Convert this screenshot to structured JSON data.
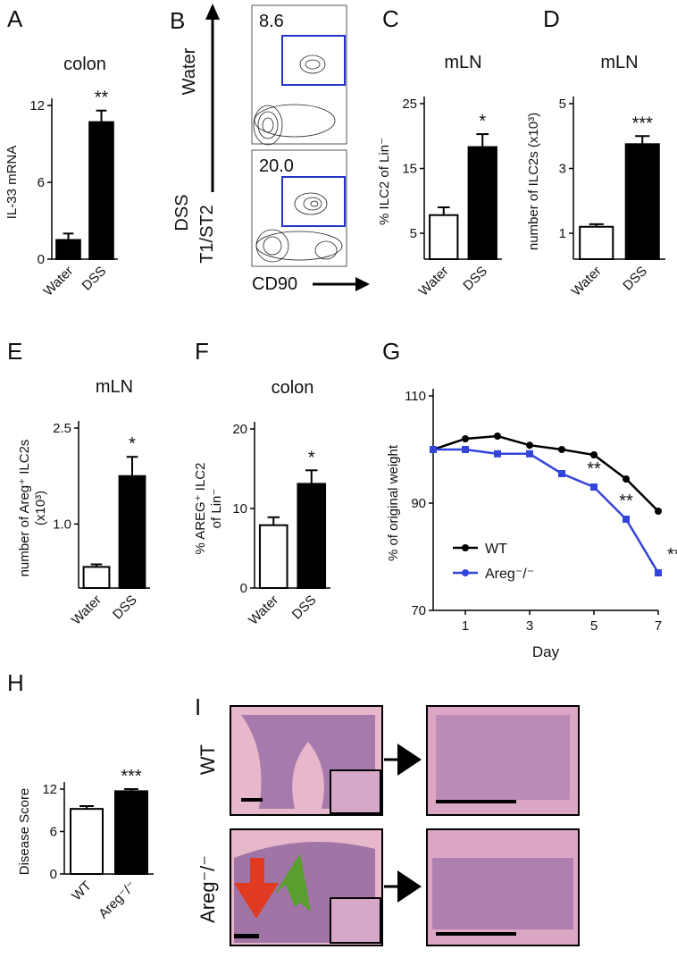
{
  "chart_data": [
    {
      "type": "bar",
      "panel": "A",
      "title": "colon",
      "ylabel": "IL-33 mRNA",
      "categories": [
        "Water",
        "DSS"
      ],
      "values": [
        1.5,
        10.7
      ],
      "errors": [
        0.5,
        0.9
      ],
      "colors": [
        "#000000",
        "#000000"
      ],
      "fills": [
        "#000000",
        "#000000"
      ],
      "ylim": [
        0,
        12
      ],
      "yticks": [
        0,
        6,
        12
      ],
      "annotation": "**"
    },
    {
      "type": "bar",
      "panel": "C",
      "title": "mLN",
      "ylabel": "% ILC2 of Lin⁻",
      "categories": [
        "Water",
        "DSS"
      ],
      "values": [
        7.8,
        18.3
      ],
      "errors": [
        1.2,
        2.0
      ],
      "fills": [
        "#ffffff",
        "#000000"
      ],
      "ylim": [
        1,
        25
      ],
      "yticks": [
        5,
        15,
        25
      ],
      "annotation": "*"
    },
    {
      "type": "bar",
      "panel": "D",
      "title": "mLN",
      "ylabel": "number of ILC2s (x10³)",
      "categories": [
        "Water",
        "DSS"
      ],
      "values": [
        1.2,
        3.75
      ],
      "errors": [
        0.08,
        0.25
      ],
      "fills": [
        "#ffffff",
        "#000000"
      ],
      "ylim": [
        0.2,
        5
      ],
      "yticks": [
        1,
        3,
        5
      ],
      "annotation": "***"
    },
    {
      "type": "bar",
      "panel": "E",
      "title": "mLN",
      "ylabel": [
        "number of Areg⁺ ILC2s",
        "(x10³)"
      ],
      "categories": [
        "Water",
        "DSS"
      ],
      "values": [
        0.33,
        1.75
      ],
      "errors": [
        0.04,
        0.3
      ],
      "fills": [
        "#ffffff",
        "#000000"
      ],
      "ylim": [
        0,
        2.5
      ],
      "yticks": [
        {
          "value": 1,
          "label": "1.0"
        },
        {
          "value": 2.5,
          "label": "2.5"
        }
      ],
      "annotation": "*"
    },
    {
      "type": "bar",
      "panel": "F",
      "title": "colon",
      "ylabel": [
        "% AREG⁺ ILC2",
        "of Lin⁻"
      ],
      "categories": [
        "Water",
        "DSS"
      ],
      "values": [
        7.9,
        13.1
      ],
      "errors": [
        1.0,
        1.7
      ],
      "fills": [
        "#ffffff",
        "#000000"
      ],
      "ylim": [
        0,
        20
      ],
      "yticks": [
        0,
        10,
        20
      ],
      "annotation": "*"
    },
    {
      "type": "line",
      "panel": "G",
      "ylabel": "% of original weight",
      "xlabel": "Day",
      "x": [
        0,
        1,
        2,
        3,
        4,
        5,
        6,
        7
      ],
      "xlim": [
        0,
        7
      ],
      "xticks": [
        1,
        3,
        5,
        7
      ],
      "ylim": [
        70,
        110
      ],
      "yticks": [
        70,
        90,
        110
      ],
      "legend": "lower left",
      "series": [
        {
          "name": "WT",
          "color": "#000000",
          "values": [
            100,
            102,
            102.5,
            100.8,
            100,
            99,
            94.5,
            88.5
          ]
        },
        {
          "name": "Areg⁻/⁻",
          "color": "#3344dd",
          "values": [
            100,
            100,
            99.2,
            99.2,
            95.5,
            93,
            87,
            77
          ]
        }
      ],
      "annotations": [
        {
          "x": 5,
          "text": "**"
        },
        {
          "x": 6,
          "text": "**"
        },
        {
          "x": 7,
          "text": "***"
        }
      ]
    },
    {
      "type": "bar",
      "panel": "H",
      "ylabel": "Disease Score",
      "categories": [
        "WT",
        "Areg⁻/⁻"
      ],
      "values": [
        9.2,
        11.7
      ],
      "errors": [
        0.4,
        0.3
      ],
      "fills": [
        "#ffffff",
        "#000000"
      ],
      "ylim": [
        0,
        12
      ],
      "yticks": [
        0,
        6,
        12
      ],
      "annotation": "***"
    }
  ],
  "flow": {
    "panel": "B",
    "plots": [
      {
        "label": "Water",
        "percent": "8.6"
      },
      {
        "label": "DSS",
        "percent": "20.0"
      }
    ],
    "y_axis": "T1/ST2",
    "x_axis": "CD90"
  },
  "histology": {
    "panel": "I",
    "rows": [
      "WT",
      "Areg⁻/⁻"
    ]
  }
}
